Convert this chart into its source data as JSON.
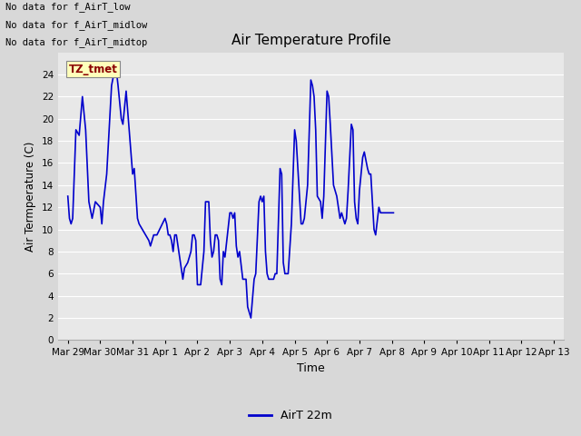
{
  "title": "Air Temperature Profile",
  "xlabel": "Time",
  "ylabel": "Air Termperature (C)",
  "legend_label": "AirT 22m",
  "ylim": [
    0,
    26
  ],
  "yticks": [
    0,
    2,
    4,
    6,
    8,
    10,
    12,
    14,
    16,
    18,
    20,
    22,
    24
  ],
  "line_color": "#0000cc",
  "fig_facecolor": "#d8d8d8",
  "ax_facecolor": "#e8e8e8",
  "annotations": [
    "No data for f_AirT_low",
    "No data for f_AirT_midlow",
    "No data for f_AirT_midtop"
  ],
  "tz_tmet_label": "TZ_tmet",
  "x_labels": [
    "Mar 29",
    "Mar 30",
    "Mar 31",
    "Apr 1",
    "Apr 2",
    "Apr 3",
    "Apr 4",
    "Apr 5",
    "Apr 6",
    "Apr 7",
    "Apr 8",
    "Apr 9",
    "Apr 10",
    "Apr 11",
    "Apr 12",
    "Apr 13"
  ],
  "temp_data": [
    [
      0.0,
      13.0
    ],
    [
      0.05,
      11.0
    ],
    [
      0.1,
      10.5
    ],
    [
      0.15,
      11.0
    ],
    [
      0.25,
      19.0
    ],
    [
      0.35,
      18.5
    ],
    [
      0.45,
      22.0
    ],
    [
      0.55,
      19.0
    ],
    [
      0.65,
      12.5
    ],
    [
      0.75,
      11.0
    ],
    [
      0.85,
      12.5
    ],
    [
      1.0,
      12.0
    ],
    [
      1.05,
      10.5
    ],
    [
      1.1,
      12.5
    ],
    [
      1.2,
      15.0
    ],
    [
      1.35,
      23.0
    ],
    [
      1.45,
      24.5
    ],
    [
      1.5,
      24.3
    ],
    [
      1.55,
      23.0
    ],
    [
      1.65,
      20.0
    ],
    [
      1.7,
      19.5
    ],
    [
      1.8,
      22.5
    ],
    [
      2.0,
      15.0
    ],
    [
      2.05,
      15.5
    ],
    [
      2.15,
      11.0
    ],
    [
      2.2,
      10.5
    ],
    [
      2.3,
      10.0
    ],
    [
      2.4,
      9.5
    ],
    [
      2.5,
      9.0
    ],
    [
      2.55,
      8.5
    ],
    [
      2.65,
      9.5
    ],
    [
      2.75,
      9.5
    ],
    [
      3.0,
      11.0
    ],
    [
      3.05,
      10.5
    ],
    [
      3.1,
      9.5
    ],
    [
      3.15,
      9.5
    ],
    [
      3.2,
      9.0
    ],
    [
      3.25,
      8.0
    ],
    [
      3.3,
      9.5
    ],
    [
      3.35,
      9.5
    ],
    [
      3.5,
      6.5
    ],
    [
      3.55,
      5.5
    ],
    [
      3.6,
      6.5
    ],
    [
      3.7,
      7.0
    ],
    [
      3.75,
      7.5
    ],
    [
      3.8,
      8.0
    ],
    [
      3.85,
      9.5
    ],
    [
      3.9,
      9.5
    ],
    [
      3.95,
      9.0
    ],
    [
      4.0,
      5.0
    ],
    [
      4.05,
      5.0
    ],
    [
      4.1,
      5.0
    ],
    [
      4.2,
      8.0
    ],
    [
      4.25,
      12.5
    ],
    [
      4.3,
      12.5
    ],
    [
      4.35,
      12.5
    ],
    [
      4.4,
      9.0
    ],
    [
      4.45,
      7.5
    ],
    [
      4.5,
      8.0
    ],
    [
      4.55,
      9.5
    ],
    [
      4.6,
      9.5
    ],
    [
      4.65,
      9.0
    ],
    [
      4.7,
      5.5
    ],
    [
      4.75,
      5.0
    ],
    [
      4.8,
      8.0
    ],
    [
      4.85,
      7.5
    ],
    [
      5.0,
      11.5
    ],
    [
      5.05,
      11.5
    ],
    [
      5.1,
      11.0
    ],
    [
      5.15,
      11.5
    ],
    [
      5.2,
      8.5
    ],
    [
      5.25,
      7.5
    ],
    [
      5.3,
      8.0
    ],
    [
      5.4,
      5.5
    ],
    [
      5.5,
      5.5
    ],
    [
      5.55,
      3.0
    ],
    [
      5.6,
      2.5
    ],
    [
      5.65,
      2.0
    ],
    [
      5.75,
      5.5
    ],
    [
      5.8,
      6.0
    ],
    [
      5.9,
      12.5
    ],
    [
      5.95,
      13.0
    ],
    [
      6.0,
      12.5
    ],
    [
      6.05,
      13.0
    ],
    [
      6.1,
      8.0
    ],
    [
      6.15,
      6.0
    ],
    [
      6.2,
      5.5
    ],
    [
      6.25,
      5.5
    ],
    [
      6.35,
      5.5
    ],
    [
      6.4,
      6.0
    ],
    [
      6.45,
      6.0
    ],
    [
      6.55,
      15.5
    ],
    [
      6.6,
      15.0
    ],
    [
      6.65,
      7.0
    ],
    [
      6.7,
      6.0
    ],
    [
      6.75,
      6.0
    ],
    [
      6.8,
      6.0
    ],
    [
      6.9,
      10.5
    ],
    [
      7.0,
      19.0
    ],
    [
      7.05,
      18.0
    ],
    [
      7.1,
      15.5
    ],
    [
      7.2,
      10.5
    ],
    [
      7.25,
      10.5
    ],
    [
      7.3,
      11.0
    ],
    [
      7.4,
      14.0
    ],
    [
      7.5,
      23.5
    ],
    [
      7.55,
      23.0
    ],
    [
      7.6,
      22.0
    ],
    [
      7.65,
      19.0
    ],
    [
      7.7,
      13.0
    ],
    [
      7.8,
      12.5
    ],
    [
      7.85,
      11.0
    ],
    [
      7.9,
      13.0
    ],
    [
      8.0,
      22.5
    ],
    [
      8.05,
      22.0
    ],
    [
      8.1,
      19.5
    ],
    [
      8.2,
      14.0
    ],
    [
      8.25,
      13.5
    ],
    [
      8.3,
      13.0
    ],
    [
      8.4,
      11.0
    ],
    [
      8.45,
      11.5
    ],
    [
      8.5,
      11.0
    ],
    [
      8.55,
      10.5
    ],
    [
      8.6,
      11.0
    ],
    [
      8.65,
      13.5
    ],
    [
      8.75,
      19.5
    ],
    [
      8.8,
      19.0
    ],
    [
      8.85,
      12.5
    ],
    [
      8.9,
      11.0
    ],
    [
      8.95,
      10.5
    ],
    [
      9.0,
      13.5
    ],
    [
      9.1,
      16.5
    ],
    [
      9.15,
      17.0
    ],
    [
      9.25,
      15.5
    ],
    [
      9.3,
      15.0
    ],
    [
      9.35,
      15.0
    ],
    [
      9.45,
      10.0
    ],
    [
      9.5,
      9.5
    ],
    [
      9.6,
      12.0
    ],
    [
      9.65,
      11.5
    ],
    [
      9.7,
      11.5
    ],
    [
      9.8,
      11.5
    ],
    [
      9.85,
      11.5
    ],
    [
      9.9,
      11.5
    ],
    [
      10.0,
      11.5
    ],
    [
      10.05,
      11.5
    ]
  ]
}
